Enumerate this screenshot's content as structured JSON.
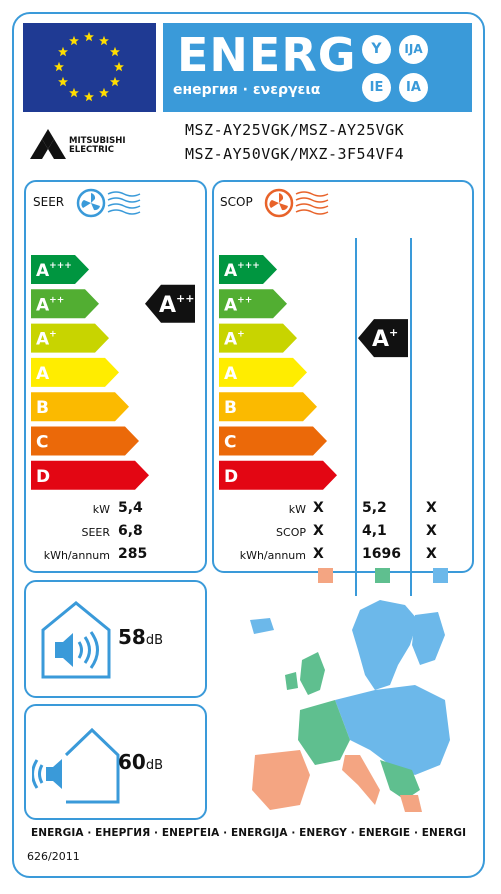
{
  "header": {
    "energ": "ENERG",
    "energ_sub": "енергия · ενεργεια",
    "lang_codes": [
      "Y",
      "IJA",
      "IE",
      "IA"
    ]
  },
  "brand": {
    "line1": "MITSUBISHI",
    "line2": "ELECTRIC"
  },
  "models": {
    "line1": "MSZ-AY25VGK/MSZ-AY25VGK",
    "line2": "MSZ-AY50VGK/MXZ-3F54VF4"
  },
  "scale": [
    {
      "letter": "A",
      "plus": "+++",
      "color": "#009640"
    },
    {
      "letter": "A",
      "plus": "++",
      "color": "#52ae32"
    },
    {
      "letter": "A",
      "plus": "+",
      "color": "#c8d400"
    },
    {
      "letter": "A",
      "plus": "",
      "color": "#ffed00"
    },
    {
      "letter": "B",
      "plus": "",
      "color": "#fbba00"
    },
    {
      "letter": "C",
      "plus": "",
      "color": "#eb6909"
    },
    {
      "letter": "D",
      "plus": "",
      "color": "#e30613"
    }
  ],
  "cooling": {
    "title": "SEER",
    "rating": {
      "letter": "A",
      "plus": "++"
    },
    "rows": [
      {
        "label": "kW",
        "value": "5,4"
      },
      {
        "label": "SEER",
        "value": "6,8"
      },
      {
        "label": "kWh/annum",
        "value": "285"
      }
    ],
    "icon_color": "#3a9ad9"
  },
  "heating": {
    "title": "SCOP",
    "rating": {
      "letter": "A",
      "plus": "+"
    },
    "rows": [
      {
        "label": "kW",
        "values": [
          "X",
          "5,2",
          "X"
        ]
      },
      {
        "label": "SCOP",
        "values": [
          "X",
          "4,1",
          "X"
        ]
      },
      {
        "label": "kWh/annum",
        "values": [
          "X",
          "1696",
          "X"
        ]
      }
    ],
    "zone_colors": [
      "#f4a582",
      "#5fbf8f",
      "#6cb8ea"
    ],
    "icon_color": "#e8632a"
  },
  "noise_indoor": {
    "value": "58",
    "unit": "dB"
  },
  "noise_outdoor": {
    "value": "60",
    "unit": "dB"
  },
  "footer": {
    "languages": "ENERGIA · ЕНЕРГИЯ · ΕΝΕΡΓΕΙΑ · ENERGIJA · ENERGY · ENERGIE · ENERGI",
    "regulation": "626/2011"
  }
}
